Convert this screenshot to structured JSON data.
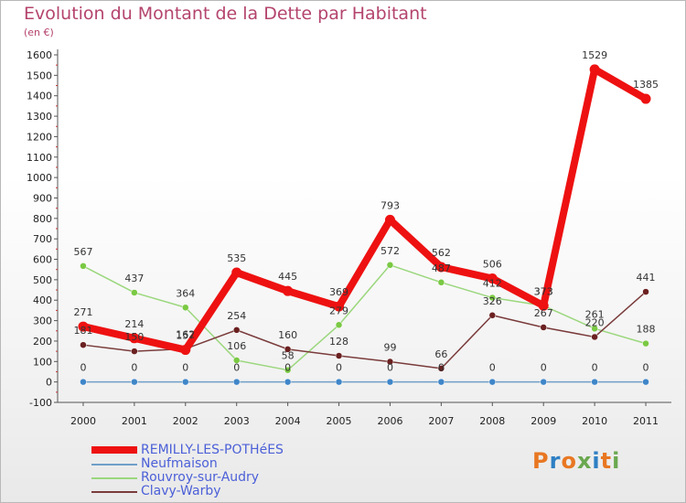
{
  "header": {
    "title": "Evolution du Montant de la Dette par Habitant",
    "subtitle": "(en €)"
  },
  "logo": {
    "text": "Proxiti",
    "colors": [
      "#e87722",
      "#2e7fc3",
      "#e87722",
      "#6aa84f",
      "#2e7fc3",
      "#e87722",
      "#6aa84f"
    ]
  },
  "chart_data": {
    "type": "line",
    "title": "Evolution du Montant de la Dette par Habitant",
    "ylabel": "(en €)",
    "xlabel": "",
    "x": [
      "2000",
      "2001",
      "2002",
      "2003",
      "2004",
      "2005",
      "2006",
      "2007",
      "2008",
      "2009",
      "2010",
      "2011"
    ],
    "ylim": [
      -100,
      1600
    ],
    "yticks": [
      -100,
      0,
      100,
      200,
      300,
      400,
      500,
      600,
      700,
      800,
      900,
      1000,
      1100,
      1200,
      1300,
      1400,
      1500,
      1600
    ],
    "grid": false,
    "legend_position": "bottom-left",
    "series": [
      {
        "name": "Neufmaison",
        "color": "#6f9fc8",
        "marker": "#3f86c9",
        "values": [
          0,
          0,
          0,
          0,
          0,
          0,
          0,
          0,
          0,
          0,
          0,
          0
        ],
        "labels": [
          "0",
          "0",
          "0",
          "0",
          "0",
          "0",
          "0",
          "0",
          "0",
          "0",
          "0",
          "0"
        ]
      },
      {
        "name": "Rouvroy-sur-Audry",
        "color": "#9bd77d",
        "marker": "#7ac943",
        "values": [
          567,
          437,
          364,
          106,
          58,
          279,
          572,
          487,
          412,
          373,
          261,
          188
        ],
        "labels": [
          "567",
          "437",
          "364",
          "106",
          "58",
          "279",
          "572",
          "487",
          "412",
          "373",
          "261",
          "188"
        ]
      },
      {
        "name": "Clavy-Warby",
        "color": "#7a3b3b",
        "marker": "#6b2020",
        "values": [
          181,
          150,
          162,
          254,
          160,
          128,
          99,
          66,
          326,
          267,
          220,
          441
        ],
        "labels": [
          "181",
          "150",
          "162",
          "254",
          "160",
          "128",
          "99",
          "66",
          "326",
          "267",
          "220",
          "441"
        ]
      },
      {
        "name": "REMILLY-LES-POTHéES",
        "color": "#ee1111",
        "marker": "#ee1111",
        "values": [
          271,
          214,
          157,
          535,
          445,
          369,
          793,
          562,
          506,
          373,
          1529,
          1385
        ],
        "labels": [
          "271",
          "214",
          "157",
          "535",
          "445",
          "369",
          "793",
          "562",
          "506",
          "373",
          "1529",
          "1385"
        ]
      }
    ]
  },
  "legend": {
    "items": [
      {
        "label": "REMILLY-LES-POTHéES",
        "color": "#ee1111",
        "thickness": 8
      },
      {
        "label": "Neufmaison",
        "color": "#6f9fc8",
        "thickness": 2
      },
      {
        "label": "Rouvroy-sur-Audry",
        "color": "#9bd77d",
        "thickness": 2
      },
      {
        "label": "Clavy-Warby",
        "color": "#7a3b3b",
        "thickness": 2
      }
    ]
  }
}
